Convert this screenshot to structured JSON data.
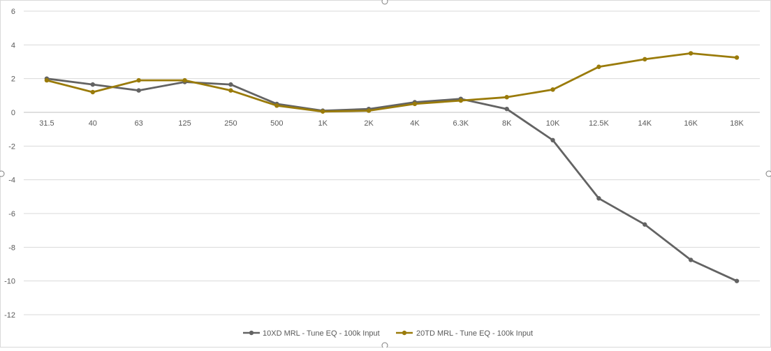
{
  "chart_data": {
    "type": "line",
    "title": "",
    "xlabel": "",
    "ylabel": "",
    "categories": [
      "31.5",
      "40",
      "63",
      "125",
      "250",
      "500",
      "1K",
      "2K",
      "4K",
      "6.3K",
      "8K",
      "10K",
      "12.5K",
      "14K",
      "16K",
      "18K"
    ],
    "ylim": [
      -12,
      6
    ],
    "yticks": [
      6,
      4,
      2,
      0,
      -2,
      -4,
      -6,
      -8,
      -10,
      -12
    ],
    "grid": true,
    "legend_position": "bottom",
    "series": [
      {
        "name": "10XD MRL - Tune EQ - 100k Input",
        "color": "#636363",
        "values": [
          2.0,
          1.65,
          1.3,
          1.8,
          1.65,
          0.5,
          0.1,
          0.2,
          0.6,
          0.8,
          0.2,
          -1.65,
          -5.1,
          -6.65,
          -8.75,
          -10.0
        ]
      },
      {
        "name": "20TD MRL - Tune EQ - 100k Input",
        "color": "#9a7b0a",
        "values": [
          1.9,
          1.2,
          1.9,
          1.9,
          1.3,
          0.4,
          0.05,
          0.1,
          0.5,
          0.7,
          0.9,
          1.35,
          2.7,
          3.15,
          3.5,
          3.25
        ]
      }
    ]
  }
}
